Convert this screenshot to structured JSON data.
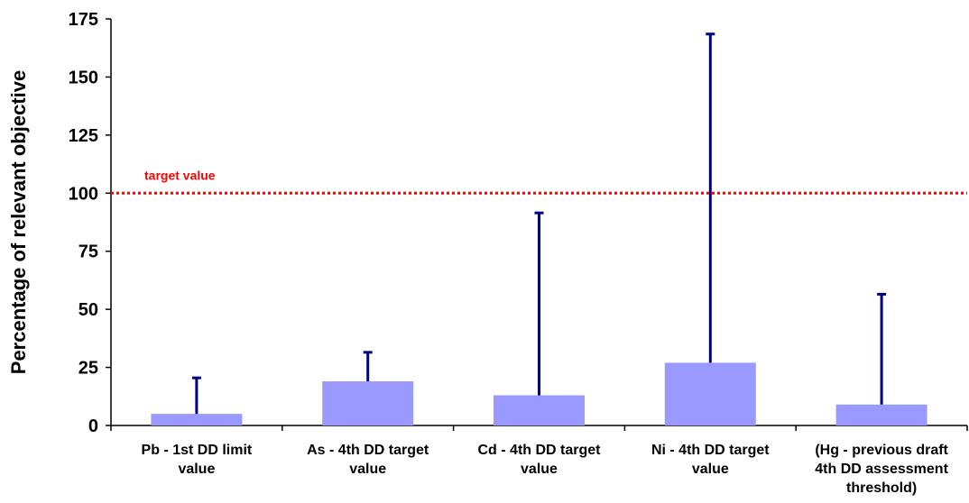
{
  "chart_data": {
    "type": "bar",
    "ylabel": "Percentage of relevant objective",
    "xlabel": "",
    "ylim": [
      0,
      175
    ],
    "yticks": [
      0,
      25,
      50,
      75,
      100,
      125,
      150,
      175
    ],
    "categories": [
      [
        "Pb - 1st DD limit",
        "value"
      ],
      [
        "As - 4th DD target",
        "value"
      ],
      [
        "Cd - 4th DD target",
        "value"
      ],
      [
        "Ni - 4th DD target",
        "value"
      ],
      [
        "(Hg - previous draft",
        "4th DD assessment",
        "threshold)"
      ]
    ],
    "values": [
      5,
      19,
      13,
      27,
      9
    ],
    "error_upper": [
      20.5,
      31.5,
      91.5,
      168.5,
      56.5
    ],
    "reference_line": {
      "value": 100,
      "label": "target value"
    },
    "grid": false,
    "colors": {
      "bar": "#9999ff",
      "error": "#000080",
      "reference": "#ff0000"
    }
  }
}
